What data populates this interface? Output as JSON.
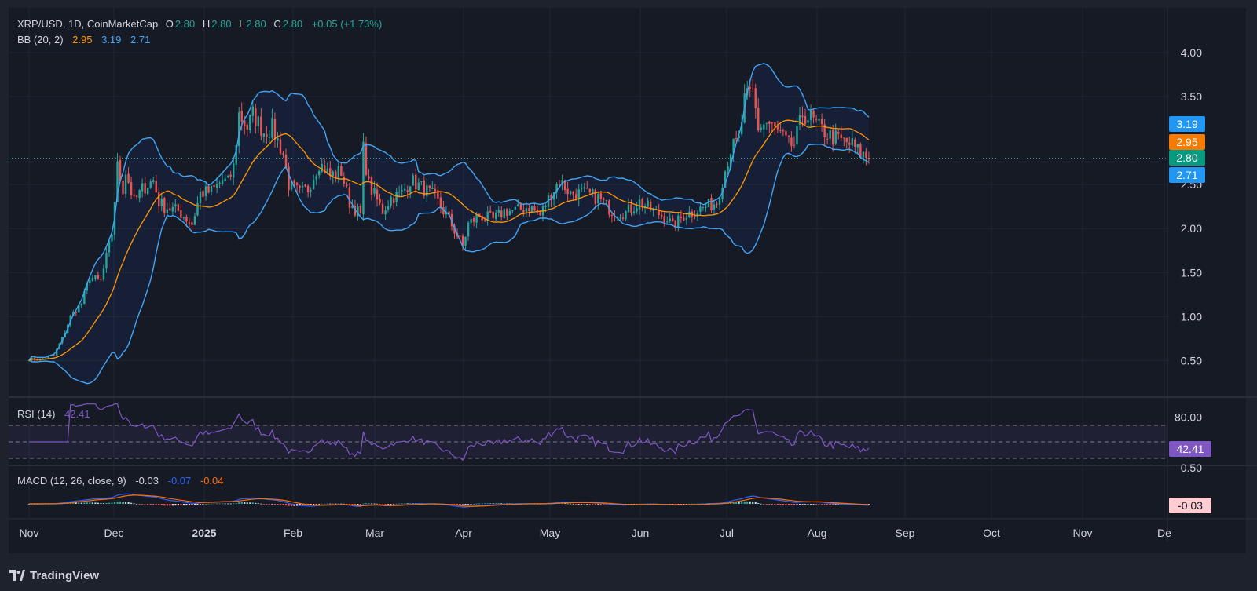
{
  "header": {
    "symbol": "XRP/USD, 1D, CoinMarketCap",
    "o_label": "O",
    "o_value": "2.80",
    "h_label": "H",
    "h_value": "2.80",
    "l_label": "L",
    "l_value": "2.80",
    "c_label": "C",
    "c_value": "2.80",
    "change": "+0.05 (+1.73%)",
    "bb_label": "BB (20, 2)",
    "bb_mid": "2.95",
    "bb_upper": "3.19",
    "bb_lower": "2.71"
  },
  "rsi_header": {
    "label": "RSI (14)",
    "value": "42.41"
  },
  "macd_header": {
    "label": "MACD (12, 26, close, 9)",
    "hist": "-0.03",
    "macd": "-0.07",
    "signal": "-0.04"
  },
  "badges": {
    "upper": "3.19",
    "mid": "2.95",
    "price": "2.80",
    "lower": "2.71",
    "rsi": "42.41",
    "macd": "-0.03"
  },
  "brand": {
    "name": "TradingView",
    "logo_icon": "tradingview-logo-icon"
  },
  "colors": {
    "up": "#26a69a",
    "down": "#ef5350",
    "bb_band": "#42a5f5",
    "bb_basis": "#ff9800",
    "rsi": "#7e57c2",
    "macd": "#2962ff",
    "signal": "#ff6d00"
  },
  "chart_data": [
    {
      "type": "candlestick",
      "title": "XRP/USD, 1D, CoinMarketCap",
      "ylim": [
        0.15,
        4.45
      ],
      "yticks": [
        "4.00",
        "3.50",
        "2.50",
        "2.00",
        "1.50",
        "1.00",
        "0.50"
      ],
      "x_ticks": [
        "Nov",
        "Dec",
        "2025",
        "Feb",
        "Mar",
        "Apr",
        "May",
        "Jun",
        "Jul",
        "Aug",
        "Sep",
        "Oct",
        "Nov",
        "De"
      ],
      "x_tick_dates": [
        "2024-11-01",
        "2024-12-01",
        "2025-01-01",
        "2025-02-01",
        "2025-03-01",
        "2025-04-01",
        "2025-05-01",
        "2025-06-01",
        "2025-07-01",
        "2025-08-01",
        "2025-09-01",
        "2025-10-01",
        "2025-11-01",
        "2025-12-01"
      ],
      "close_anchors": [
        [
          "2024-11-01",
          0.52
        ],
        [
          "2024-11-05",
          0.51
        ],
        [
          "2024-11-10",
          0.56
        ],
        [
          "2024-11-13",
          0.75
        ],
        [
          "2024-11-16",
          1.0
        ],
        [
          "2024-11-20",
          1.15
        ],
        [
          "2024-11-23",
          1.45
        ],
        [
          "2024-11-27",
          1.4
        ],
        [
          "2024-12-01",
          1.95
        ],
        [
          "2024-12-03",
          2.7
        ],
        [
          "2024-12-05",
          2.45
        ],
        [
          "2024-12-06",
          2.65
        ],
        [
          "2024-12-09",
          2.3
        ],
        [
          "2024-12-12",
          2.45
        ],
        [
          "2024-12-16",
          2.55
        ],
        [
          "2024-12-18",
          2.3
        ],
        [
          "2024-12-20",
          2.25
        ],
        [
          "2024-12-25",
          2.2
        ],
        [
          "2024-12-30",
          2.05
        ],
        [
          "2025-01-02",
          2.4
        ],
        [
          "2025-01-06",
          2.42
        ],
        [
          "2025-01-10",
          2.55
        ],
        [
          "2025-01-12",
          2.52
        ],
        [
          "2025-01-14",
          2.7
        ],
        [
          "2025-01-16",
          3.3
        ],
        [
          "2025-01-19",
          3.15
        ],
        [
          "2025-01-21",
          3.3
        ],
        [
          "2025-01-25",
          3.1
        ],
        [
          "2025-01-28",
          3.15
        ],
        [
          "2025-02-01",
          2.85
        ],
        [
          "2025-02-03",
          2.5
        ],
        [
          "2025-02-07",
          2.4
        ],
        [
          "2025-02-10",
          2.45
        ],
        [
          "2025-02-14",
          2.75
        ],
        [
          "2025-02-18",
          2.6
        ],
        [
          "2025-02-22",
          2.65
        ],
        [
          "2025-02-25",
          2.3
        ],
        [
          "2025-03-01",
          2.15
        ],
        [
          "2025-03-02",
          2.9
        ],
        [
          "2025-03-04",
          2.5
        ],
        [
          "2025-03-09",
          2.2
        ],
        [
          "2025-03-12",
          2.35
        ],
        [
          "2025-03-16",
          2.4
        ],
        [
          "2025-03-19",
          2.55
        ],
        [
          "2025-03-24",
          2.45
        ],
        [
          "2025-03-28",
          2.35
        ],
        [
          "2025-04-02",
          2.1
        ],
        [
          "2025-04-07",
          1.8
        ],
        [
          "2025-04-09",
          2.05
        ],
        [
          "2025-04-13",
          2.15
        ],
        [
          "2025-04-18",
          2.1
        ],
        [
          "2025-04-22",
          2.2
        ],
        [
          "2025-04-26",
          2.2
        ],
        [
          "2025-05-01",
          2.25
        ],
        [
          "2025-05-05",
          2.15
        ],
        [
          "2025-05-09",
          2.4
        ],
        [
          "2025-05-12",
          2.55
        ],
        [
          "2025-05-16",
          2.4
        ],
        [
          "2025-05-21",
          2.4
        ],
        [
          "2025-05-26",
          2.35
        ],
        [
          "2025-05-31",
          2.2
        ],
        [
          "2025-06-05",
          2.18
        ],
        [
          "2025-06-10",
          2.3
        ],
        [
          "2025-06-15",
          2.2
        ],
        [
          "2025-06-20",
          2.12
        ],
        [
          "2025-06-22",
          2.02
        ],
        [
          "2025-06-26",
          2.15
        ],
        [
          "2025-06-30",
          2.2
        ],
        [
          "2025-07-04",
          2.25
        ],
        [
          "2025-07-08",
          2.3
        ],
        [
          "2025-07-10",
          2.55
        ],
        [
          "2025-07-13",
          2.9
        ],
        [
          "2025-07-16",
          3.0
        ],
        [
          "2025-07-18",
          3.45
        ],
        [
          "2025-07-21",
          3.55
        ],
        [
          "2025-07-23",
          3.15
        ],
        [
          "2025-07-26",
          3.2
        ],
        [
          "2025-07-30",
          3.1
        ],
        [
          "2025-08-03",
          2.95
        ],
        [
          "2025-08-05",
          2.95
        ],
        [
          "2025-08-08",
          3.3
        ],
        [
          "2025-08-11",
          3.25
        ],
        [
          "2025-08-14",
          3.15
        ],
        [
          "2025-08-18",
          3.05
        ],
        [
          "2025-08-22",
          3.0
        ],
        [
          "2025-08-26",
          2.95
        ],
        [
          "2025-08-29",
          2.85
        ],
        [
          "2025-09-01",
          2.8
        ]
      ],
      "series": [
        {
          "name": "BB (20, 2)",
          "role": "basis (mid)",
          "last": 2.95
        },
        {
          "name": "BB (20, 2)",
          "role": "upper",
          "last": 3.19
        },
        {
          "name": "BB (20, 2)",
          "role": "lower",
          "last": 2.71
        }
      ],
      "last_close": 2.8
    },
    {
      "type": "line",
      "title": "RSI (14)",
      "ylim": [
        12,
        100
      ],
      "yticks": [
        "80.00"
      ],
      "bands": [
        30,
        70
      ],
      "midline": 50,
      "last": 42.41
    },
    {
      "type": "bar",
      "title": "MACD (12, 26, close, 9)",
      "ytick": "0.50",
      "series": [
        {
          "name": "Histogram",
          "last": -0.03
        },
        {
          "name": "MACD",
          "last": -0.07
        },
        {
          "name": "Signal",
          "last": -0.04
        }
      ]
    }
  ]
}
